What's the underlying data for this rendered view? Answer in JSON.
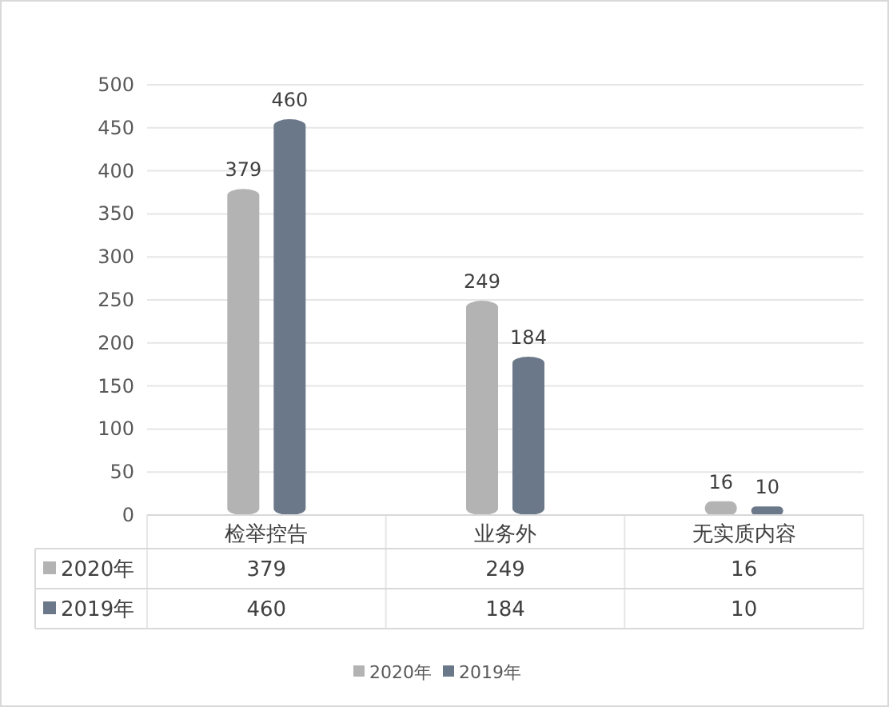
{
  "chart_data": {
    "type": "bar",
    "categories": [
      "检举控告",
      "业务外",
      "无实质内容"
    ],
    "series": [
      {
        "name": "2020年",
        "color": "#b3b3b3",
        "values": [
          379,
          249,
          16
        ],
        "value_labels": [
          "379",
          "249",
          "16"
        ]
      },
      {
        "name": "2019年",
        "color": "#6b7889",
        "values": [
          460,
          184,
          10
        ],
        "value_labels": [
          "460",
          "184",
          "10"
        ]
      }
    ],
    "ylim": [
      0,
      500
    ],
    "yticks": [
      0,
      50,
      100,
      150,
      200,
      250,
      300,
      350,
      400,
      450,
      500
    ],
    "grid": "y",
    "legend": "bottom",
    "annotations": [
      "379",
      "249",
      "16",
      "460",
      "184",
      "10"
    ]
  }
}
